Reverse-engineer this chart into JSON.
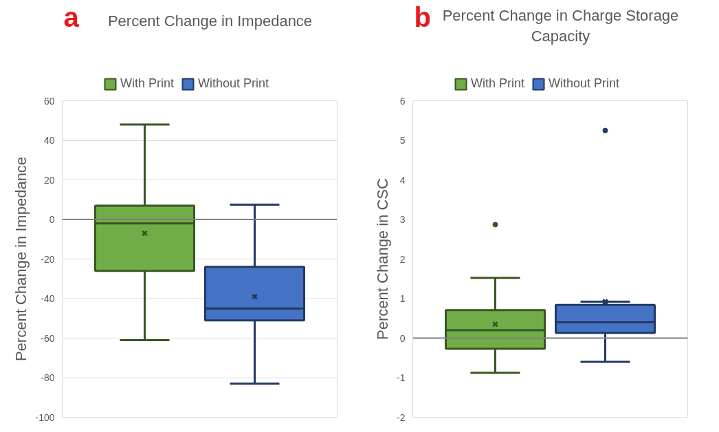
{
  "chart_data": [
    {
      "type": "box",
      "title": "Percent Change in Impedance",
      "ylabel": "Percent Change in Impedance",
      "annotations": [
        "a"
      ],
      "categories": [
        null
      ],
      "ylim": [
        -100,
        60
      ],
      "yticks": [
        -100,
        -80,
        -60,
        -40,
        -20,
        0,
        20,
        40,
        60
      ],
      "grid": "y",
      "legend": "top",
      "tick_labels": "y",
      "ref_lines": [
        {
          "axis": "y",
          "value": 0,
          "color": "#808080"
        }
      ],
      "series": [
        {
          "name": "With Print",
          "color": "#70ad47",
          "boxes": [
            {
              "low": -61,
              "q1": -26,
              "median": -2,
              "q3": 7,
              "high": 48,
              "mean": -7
            }
          ]
        },
        {
          "name": "Without Print",
          "color": "#4472c4",
          "boxes": [
            {
              "low": -83,
              "q1": -51,
              "median": -45,
              "q3": -24,
              "high": 7.5,
              "mean": -39
            }
          ]
        }
      ]
    },
    {
      "type": "box",
      "title": "Percent Change in Charge Storage Capacity",
      "ylabel": "Percent Change in CSC",
      "annotations": [
        "b"
      ],
      "categories": [
        null
      ],
      "ylim": [
        -2,
        6
      ],
      "yticks": [
        -2,
        -1,
        0,
        1,
        2,
        3,
        4,
        5,
        6
      ],
      "grid": false,
      "legend": "top",
      "tick_labels": "y",
      "ref_lines": [
        {
          "axis": "y",
          "value": 0,
          "color": "#808080"
        }
      ],
      "series": [
        {
          "name": "With Print",
          "color": "#70ad47",
          "boxes": [
            {
              "low": -0.88,
              "q1": -0.27,
              "median": 0.2,
              "q3": 0.71,
              "high": 1.52,
              "mean": 0.35,
              "outliers": [
                2.87
              ]
            }
          ]
        },
        {
          "name": "Without Print",
          "color": "#4472c4",
          "boxes": [
            {
              "low": -0.6,
              "q1": 0.13,
              "median": 0.4,
              "q3": 0.84,
              "high": 0.92,
              "mean": 0.92,
              "outliers": [
                5.25
              ]
            }
          ]
        }
      ]
    }
  ]
}
